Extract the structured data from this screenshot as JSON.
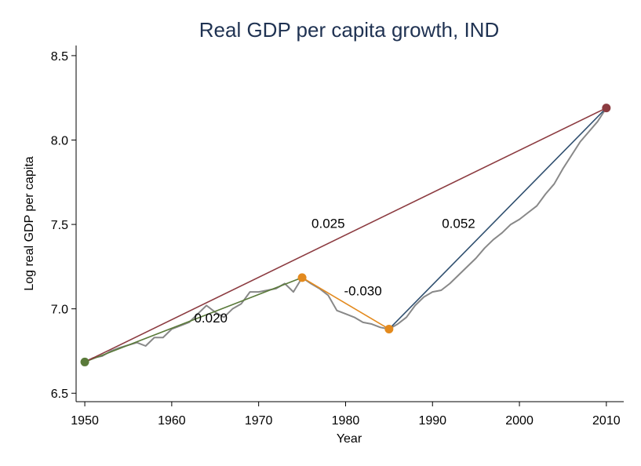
{
  "chart_data": {
    "type": "line",
    "title": "Real GDP per capita growth, IND",
    "xlabel": "Year",
    "ylabel": "Log real GDP per capita",
    "xlim": [
      1949,
      2012
    ],
    "ylim": [
      6.45,
      8.56
    ],
    "xticks": [
      1950,
      1960,
      1970,
      1980,
      1990,
      2000,
      2010
    ],
    "yticks": [
      6.5,
      7.0,
      7.5,
      8.0,
      8.5
    ],
    "ytick_labels": [
      "6.5",
      "7.0",
      "7.5",
      "8.0",
      "8.5"
    ],
    "grid": false,
    "series": [
      {
        "color": "#888888",
        "x": [
          1950,
          1951,
          1952,
          1953,
          1954,
          1955,
          1956,
          1957,
          1958,
          1959,
          1960,
          1961,
          1962,
          1963,
          1964,
          1965,
          1966,
          1967,
          1968,
          1969,
          1970,
          1971,
          1972,
          1973,
          1974,
          1975,
          1976,
          1977,
          1978,
          1979,
          1980,
          1981,
          1982,
          1983,
          1984,
          1985,
          1986,
          1987,
          1988,
          1989,
          1990,
          1991,
          1992,
          1993,
          1994,
          1995,
          1996,
          1997,
          1998,
          1999,
          2000,
          2001,
          2002,
          2003,
          2004,
          2005,
          2006,
          2007,
          2008,
          2009,
          2010
        ],
        "y": [
          6.685,
          6.71,
          6.72,
          6.75,
          6.77,
          6.785,
          6.8,
          6.78,
          6.83,
          6.83,
          6.88,
          6.9,
          6.92,
          6.97,
          7.02,
          6.98,
          6.95,
          7.0,
          7.03,
          7.1,
          7.1,
          7.11,
          7.12,
          7.15,
          7.1,
          7.185,
          7.15,
          7.12,
          7.08,
          6.99,
          6.97,
          6.95,
          6.92,
          6.91,
          6.89,
          6.88,
          6.91,
          6.95,
          7.02,
          7.07,
          7.1,
          7.11,
          7.15,
          7.2,
          7.25,
          7.3,
          7.36,
          7.41,
          7.45,
          7.5,
          7.53,
          7.57,
          7.61,
          7.68,
          7.74,
          7.83,
          7.91,
          7.99,
          8.05,
          8.11,
          8.19
        ]
      },
      {
        "color": "#5a7a3a",
        "x": [
          1950,
          1975
        ],
        "y": [
          6.685,
          7.185
        ]
      },
      {
        "color": "#e38a1e",
        "x": [
          1975,
          1985
        ],
        "y": [
          7.185,
          6.88
        ]
      },
      {
        "color": "#2f4f6f",
        "x": [
          1985,
          2010
        ],
        "y": [
          6.88,
          8.19
        ]
      },
      {
        "color": "#8c3b40",
        "x": [
          1950,
          2010
        ],
        "y": [
          6.685,
          8.19
        ]
      }
    ],
    "points": [
      {
        "x": 1950,
        "y": 6.685,
        "color": "#5a7a3a"
      },
      {
        "x": 1975,
        "y": 7.185,
        "color": "#e38a1e"
      },
      {
        "x": 1985,
        "y": 6.88,
        "color": "#e38a1e"
      },
      {
        "x": 2010,
        "y": 8.19,
        "color": "#8c3b40"
      }
    ],
    "annotations": [
      {
        "text": "0.020",
        "x": 1964.5,
        "y": 6.92
      },
      {
        "text": "-0.030",
        "x": 1982.0,
        "y": 7.08
      },
      {
        "text": "0.052",
        "x": 1993.0,
        "y": 7.48
      },
      {
        "text": "0.025",
        "x": 1978.0,
        "y": 7.48
      }
    ]
  }
}
